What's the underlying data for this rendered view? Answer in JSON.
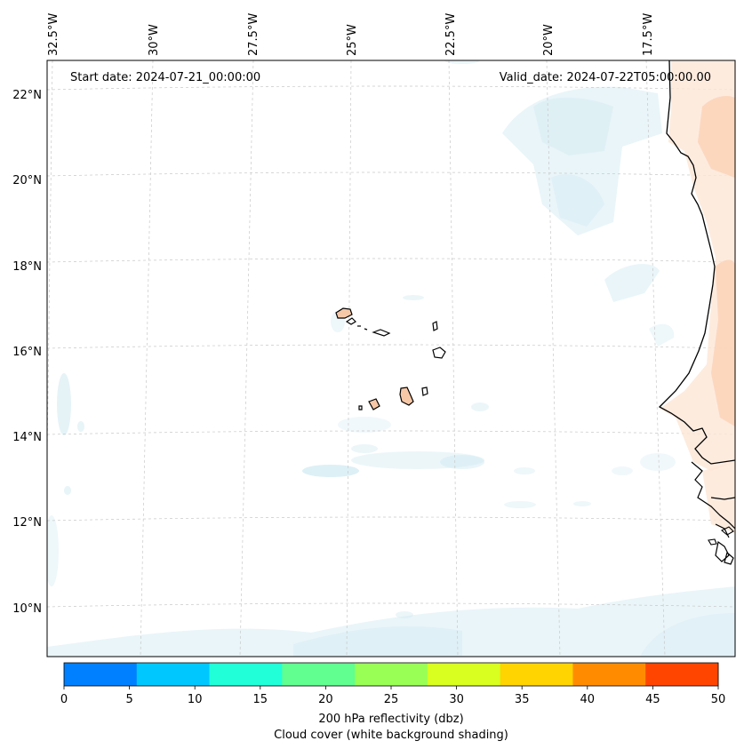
{
  "map": {
    "start_date": "Start date: 2024-07-21_00:00:00",
    "valid_date": "Valid_date: 2024-07-22T05:00:00.00",
    "lat_labels": [
      "22°N",
      "20°N",
      "18°N",
      "16°N",
      "14°N",
      "12°N",
      "10°N"
    ],
    "lon_labels": [
      "32.5°W",
      "30°W",
      "27.5°W",
      "25°W",
      "22.5°W",
      "20°W",
      "17.5°W"
    ]
  },
  "colorbar": {
    "ticks": [
      "0",
      "5",
      "10",
      "15",
      "20",
      "25",
      "30",
      "35",
      "40",
      "45",
      "50"
    ],
    "colors": [
      "#0080ff",
      "#00c8ff",
      "#20ffd8",
      "#60ff90",
      "#99ff55",
      "#d8ff20",
      "#ffd400",
      "#ff8c00",
      "#ff4500"
    ],
    "label_line1": "200 hPa reflectivity (dbz)",
    "label_line2": "Cloud cover (white background shading)"
  }
}
